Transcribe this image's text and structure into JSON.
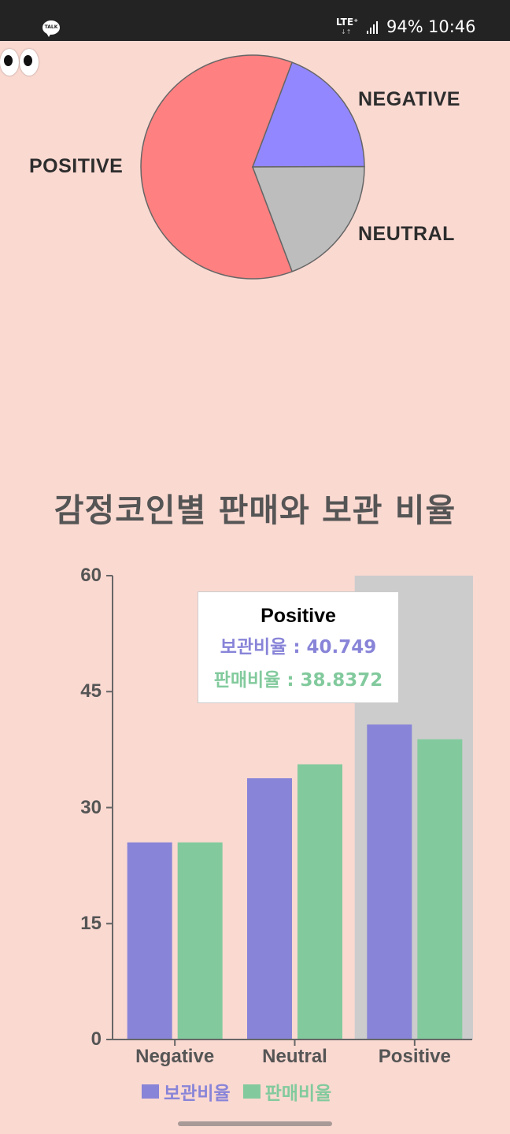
{
  "status_bar": {
    "talk": "TALK",
    "network": "LTE⁺",
    "network_arrows": "↓↑",
    "battery": "94%",
    "time": "10:46"
  },
  "pie_chart": {
    "labels": {
      "positive": "POSITIVE",
      "negative": "NEGATIVE",
      "neutral": "NEUTRAL"
    }
  },
  "chart_data": [
    {
      "type": "pie",
      "title": "",
      "slices": [
        {
          "label": "POSITIVE",
          "value": 61.5,
          "color": "#FF8080"
        },
        {
          "label": "NEGATIVE",
          "value": 19.2,
          "color": "#9387FF"
        },
        {
          "label": "NEUTRAL",
          "value": 19.3,
          "color": "#BDBDBD"
        }
      ]
    },
    {
      "type": "bar",
      "title": "감정코인별 판매와 보관 비율",
      "categories": [
        "Negative",
        "Neutral",
        "Positive"
      ],
      "series": [
        {
          "name": "보관비율",
          "values": [
            25.5,
            33.8,
            40.749
          ],
          "color": "#8884D8"
        },
        {
          "name": "판매비율",
          "values": [
            25.5,
            35.6,
            38.8372
          ],
          "color": "#82CA9D"
        }
      ],
      "ylim": [
        0,
        60
      ],
      "yticks": [
        "0",
        "15",
        "30",
        "45",
        "60"
      ],
      "highlighted_category": "Positive",
      "tooltip": {
        "title": "Positive",
        "rows": [
          "보관비율 : 40.749",
          "판매비율 : 38.8372"
        ]
      },
      "legend": "bottom"
    }
  ],
  "colors": {
    "background": "#FAD9D1",
    "highlight": "#CCCCCC",
    "axis": "#666666"
  }
}
